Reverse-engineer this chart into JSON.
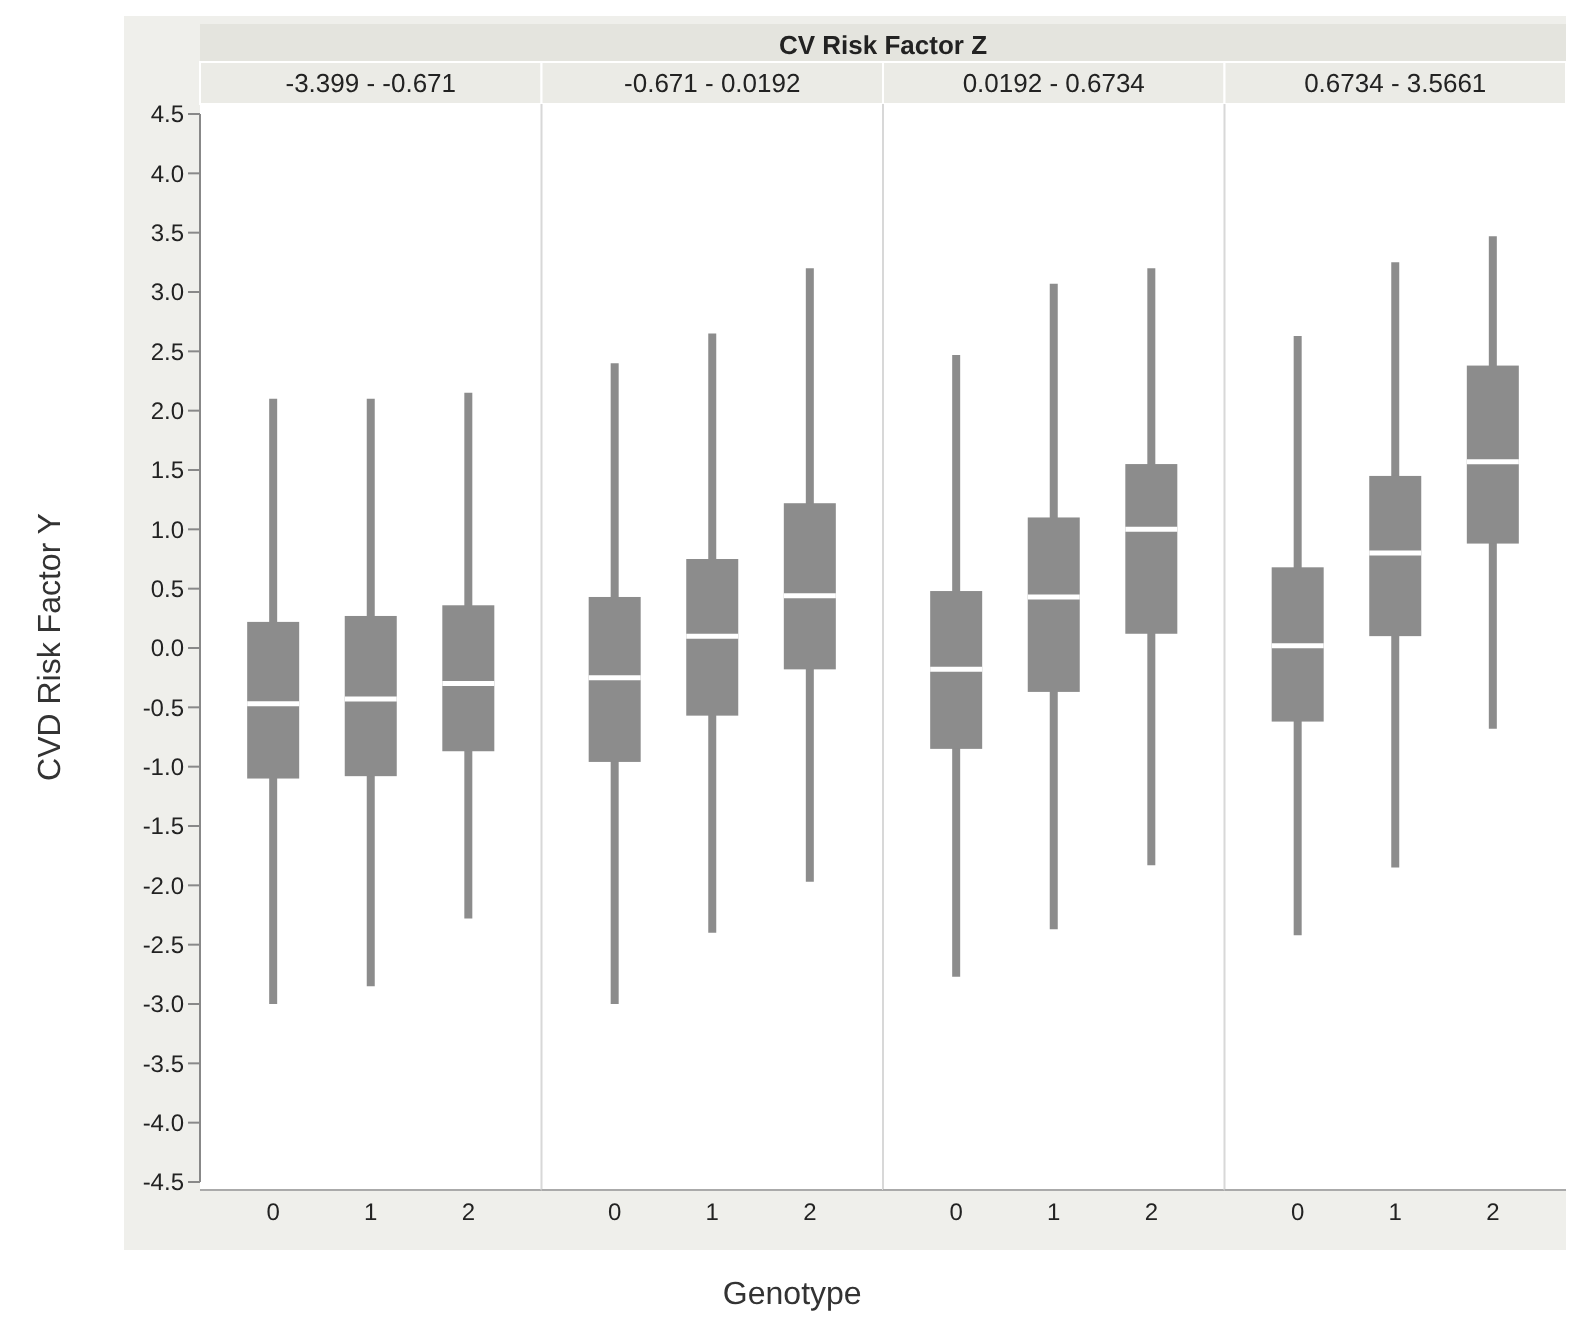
{
  "chart_data": [
    {
      "type": "box",
      "title": "-3.399 - -0.671",
      "annotations": [
        "CV Risk Factor Z"
      ],
      "ylabel": "CVD Risk Factor Y",
      "categories": [
        "0",
        "1",
        "2"
      ],
      "ylim": [
        -4.5,
        4.5
      ],
      "yticks": [
        {
          "value": -4.5,
          "label": "-4.5"
        },
        {
          "value": -4,
          "label": "-4.0"
        },
        {
          "value": -3.5,
          "label": "-3.5"
        },
        {
          "value": -3,
          "label": "-3.0"
        },
        {
          "value": -2.5,
          "label": "-2.5"
        },
        {
          "value": -2,
          "label": "-2.0"
        },
        {
          "value": -1.5,
          "label": "-1.5"
        },
        {
          "value": -1,
          "label": "-1.0"
        },
        {
          "value": -0.5,
          "label": "-0.5"
        },
        {
          "value": 0,
          "label": "0.0"
        },
        {
          "value": 0.5,
          "label": "0.5"
        },
        {
          "value": 1,
          "label": "1.0"
        },
        {
          "value": 1.5,
          "label": "1.5"
        },
        {
          "value": 2,
          "label": "2.0"
        },
        {
          "value": 2.5,
          "label": "2.5"
        },
        {
          "value": 3,
          "label": "3.0"
        },
        {
          "value": 3.5,
          "label": "3.5"
        },
        {
          "value": 4,
          "label": "4.0"
        },
        {
          "value": 4.5,
          "label": "4.5"
        }
      ],
      "series": [
        {
          "color": "#8c8c8c",
          "boxes": [
            {
              "low": -3.0,
              "q1": -1.1,
              "median": -0.47,
              "q3": 0.22,
              "high": 2.1
            },
            {
              "low": -2.85,
              "q1": -1.08,
              "median": -0.43,
              "q3": 0.27,
              "high": 2.1
            },
            {
              "low": -2.28,
              "q1": -0.87,
              "median": -0.3,
              "q3": 0.36,
              "high": 2.15
            }
          ]
        }
      ]
    },
    {
      "type": "box",
      "title": "-0.671 - 0.0192",
      "xlabel": "Genotype",
      "categories": [
        "0",
        "1",
        "2"
      ],
      "ylim": [
        -4.5,
        4.5
      ],
      "tick_labels": "x",
      "series": [
        {
          "color": "#8c8c8c",
          "boxes": [
            {
              "low": -3.0,
              "q1": -0.96,
              "median": -0.25,
              "q3": 0.43,
              "high": 2.4
            },
            {
              "low": -2.4,
              "q1": -0.57,
              "median": 0.1,
              "q3": 0.75,
              "high": 2.65
            },
            {
              "low": -1.97,
              "q1": -0.18,
              "median": 0.44,
              "q3": 1.22,
              "high": 3.2
            }
          ]
        }
      ]
    },
    {
      "type": "box",
      "title": "0.0192 - 0.6734",
      "categories": [
        "0",
        "1",
        "2"
      ],
      "ylim": [
        -4.5,
        4.5
      ],
      "tick_labels": "x",
      "series": [
        {
          "color": "#8c8c8c",
          "boxes": [
            {
              "low": -2.77,
              "q1": -0.85,
              "median": -0.18,
              "q3": 0.48,
              "high": 2.47
            },
            {
              "low": -2.37,
              "q1": -0.37,
              "median": 0.43,
              "q3": 1.1,
              "high": 3.07
            },
            {
              "low": -1.83,
              "q1": 0.12,
              "median": 1.0,
              "q3": 1.55,
              "high": 3.2
            }
          ]
        }
      ]
    },
    {
      "type": "box",
      "title": "0.6734 - 3.5661",
      "categories": [
        "0",
        "1",
        "2"
      ],
      "ylim": [
        -4.5,
        4.5
      ],
      "tick_labels": "x",
      "series": [
        {
          "color": "#8c8c8c",
          "boxes": [
            {
              "low": -2.42,
              "q1": -0.62,
              "median": 0.02,
              "q3": 0.68,
              "high": 2.63
            },
            {
              "low": -1.85,
              "q1": 0.1,
              "median": 0.8,
              "q3": 1.45,
              "high": 3.25
            },
            {
              "low": -0.68,
              "q1": 0.88,
              "median": 1.57,
              "q3": 2.38,
              "high": 3.47
            }
          ]
        }
      ]
    }
  ]
}
